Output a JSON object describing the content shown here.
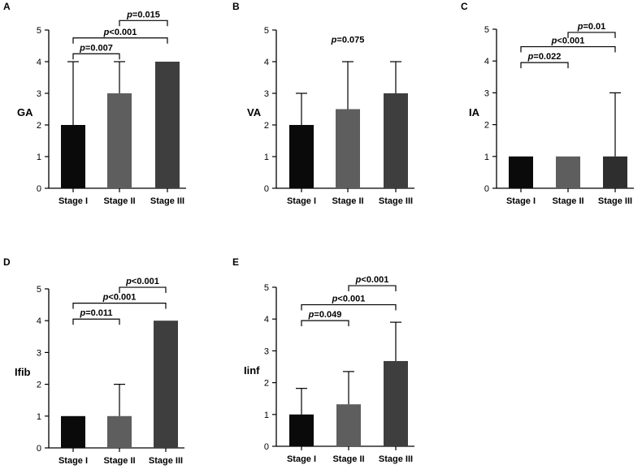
{
  "chart_data": [
    {
      "panel": "A",
      "type": "bar",
      "ylabel": "GA",
      "ylim": [
        0,
        5
      ],
      "yticks": [
        0,
        1,
        2,
        3,
        4,
        5
      ],
      "categories": [
        "Stage I",
        "Stage II",
        "Stage III"
      ],
      "values": [
        2,
        3,
        4
      ],
      "error_upper": [
        4,
        4,
        4
      ],
      "colors": [
        "#0a0a0a",
        "#5e5e5e",
        "#3e3e3e"
      ],
      "comparisons": [
        {
          "from": 1,
          "to": 2,
          "p": "0.015",
          "bracket_y": 5.3
        },
        {
          "from": 0,
          "to": 2,
          "p": "<0.001",
          "bracket_y": 4.75
        },
        {
          "from": 0,
          "to": 1,
          "p": "0.007",
          "bracket_y": 4.25
        }
      ]
    },
    {
      "panel": "B",
      "type": "bar",
      "ylabel": "VA",
      "ylim": [
        0,
        5
      ],
      "yticks": [
        0,
        1,
        2,
        3,
        4,
        5
      ],
      "categories": [
        "Stage I",
        "Stage II",
        "Stage III"
      ],
      "values": [
        2,
        2.5,
        3
      ],
      "error_upper": [
        3,
        4,
        4
      ],
      "colors": [
        "#0a0a0a",
        "#5e5e5e",
        "#3e3e3e"
      ],
      "annotation": {
        "p": "0.075",
        "at_x": 1,
        "at_y": 4.6
      }
    },
    {
      "panel": "C",
      "type": "bar",
      "ylabel": "IA",
      "ylim": [
        0,
        5
      ],
      "yticks": [
        0,
        1,
        2,
        3,
        4,
        5
      ],
      "categories": [
        "Stage I",
        "Stage II",
        "Stage III"
      ],
      "values": [
        1,
        1,
        1
      ],
      "error_upper": [
        1,
        1,
        3
      ],
      "colors": [
        "#0a0a0a",
        "#5e5e5e",
        "#2e2e2e"
      ],
      "comparisons": [
        {
          "from": 1,
          "to": 2,
          "p": "0.01",
          "bracket_y": 4.9
        },
        {
          "from": 0,
          "to": 2,
          "p": "<0.001",
          "bracket_y": 4.45
        },
        {
          "from": 0,
          "to": 1,
          "p": "0.022",
          "bracket_y": 3.95
        }
      ]
    },
    {
      "panel": "D",
      "type": "bar",
      "ylabel": "Ifib",
      "ylim": [
        0,
        5
      ],
      "yticks": [
        0,
        1,
        2,
        3,
        4,
        5
      ],
      "categories": [
        "Stage I",
        "Stage II",
        "Stage III"
      ],
      "values": [
        1,
        1,
        4
      ],
      "error_upper": [
        1,
        2,
        4
      ],
      "colors": [
        "#0a0a0a",
        "#5e5e5e",
        "#3e3e3e"
      ],
      "comparisons": [
        {
          "from": 1,
          "to": 2,
          "p": "<0.001",
          "bracket_y": 5.05
        },
        {
          "from": 0,
          "to": 2,
          "p": "<0.001",
          "bracket_y": 4.55
        },
        {
          "from": 0,
          "to": 1,
          "p": "0.011",
          "bracket_y": 4.05
        }
      ]
    },
    {
      "panel": "E",
      "type": "bar",
      "ylabel": "Iinf",
      "ylim": [
        0,
        5
      ],
      "yticks": [
        0,
        1,
        2,
        3,
        4,
        5
      ],
      "categories": [
        "Stage I",
        "Stage II",
        "Stage III"
      ],
      "values": [
        1.0,
        1.32,
        2.68
      ],
      "error_upper": [
        1.82,
        2.35,
        3.9
      ],
      "colors": [
        "#0a0a0a",
        "#5e5e5e",
        "#3e3e3e"
      ],
      "comparisons": [
        {
          "from": 1,
          "to": 2,
          "p": "<0.001",
          "bracket_y": 5.05
        },
        {
          "from": 0,
          "to": 2,
          "p": "<0.001",
          "bracket_y": 4.45
        },
        {
          "from": 0,
          "to": 1,
          "p": "0.049",
          "bracket_y": 3.95
        }
      ]
    }
  ]
}
